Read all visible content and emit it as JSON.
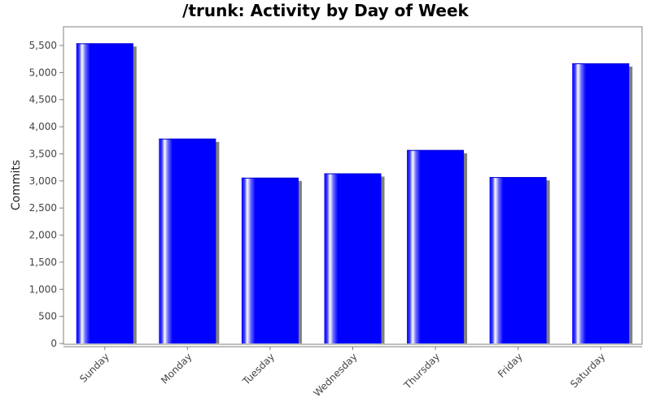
{
  "chart_data": {
    "type": "bar",
    "title": "/trunk: Activity by Day of Week",
    "xlabel": "",
    "ylabel": "Commits",
    "categories": [
      "Sunday",
      "Monday",
      "Tuesday",
      "Wednesday",
      "Thursday",
      "Friday",
      "Saturday"
    ],
    "values": [
      5540,
      3780,
      3060,
      3140,
      3570,
      3070,
      5170
    ],
    "ylim": [
      0,
      5800
    ],
    "yticks": [
      0,
      500,
      1000,
      1500,
      2000,
      2500,
      3000,
      3500,
      4000,
      4500,
      5000,
      5500
    ],
    "ytick_labels": [
      "0",
      "500",
      "1,000",
      "1,500",
      "2,000",
      "2,500",
      "3,000",
      "3,500",
      "4,000",
      "4,500",
      "5,000",
      "5,500"
    ],
    "grid": false,
    "legend": "none",
    "colors": {
      "bar": "#0000ff",
      "bar_highlight": "#ffffff",
      "shadow": "#808080",
      "axis": "#808080",
      "plot_border": "#808080"
    }
  }
}
